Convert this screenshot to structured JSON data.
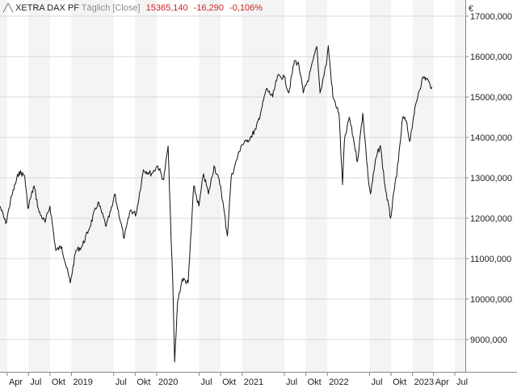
{
  "header": {
    "name": "XETRA DAX PF",
    "interval": "Täglich",
    "price_type": "[Close]",
    "last": "15365,140",
    "change": "-16,290",
    "change_pct": "-0,106%"
  },
  "colors": {
    "line": "#111111",
    "negative": "#cc2222",
    "band": "#f4f4f4",
    "grid": "#d8d8d8"
  },
  "chart_data": {
    "type": "line",
    "title": "XETRA DAX PF",
    "currency": "€",
    "ylim": [
      8200,
      17400
    ],
    "yticks": [
      9000,
      10000,
      11000,
      12000,
      13000,
      14000,
      15000,
      16000,
      17000
    ],
    "ytick_labels": [
      "9000,000",
      "10000,000",
      "11000,000",
      "12000,000",
      "13000,000",
      "14000,000",
      "15000,000",
      "16000,000",
      "17000,000"
    ],
    "xlim": [
      "2018-03-01",
      "2023-08-15"
    ],
    "xticks": [
      {
        "label": "Apr",
        "date": "2018-04-01"
      },
      {
        "label": "Jul",
        "date": "2018-07-01"
      },
      {
        "label": "Okt",
        "date": "2018-10-01"
      },
      {
        "label": "2019",
        "date": "2019-01-01"
      },
      {
        "label": "Jul",
        "date": "2019-07-01"
      },
      {
        "label": "Okt",
        "date": "2019-10-01"
      },
      {
        "label": "2020",
        "date": "2020-01-01"
      },
      {
        "label": "Jul",
        "date": "2020-07-01"
      },
      {
        "label": "Okt",
        "date": "2020-10-01"
      },
      {
        "label": "2021",
        "date": "2021-01-01"
      },
      {
        "label": "Jul",
        "date": "2021-07-01"
      },
      {
        "label": "Okt",
        "date": "2021-10-01"
      },
      {
        "label": "2022",
        "date": "2022-01-01"
      },
      {
        "label": "Jul",
        "date": "2022-07-01"
      },
      {
        "label": "Okt",
        "date": "2022-10-01"
      },
      {
        "label": "2023",
        "date": "2023-01-01"
      },
      {
        "label": "Apr",
        "date": "2023-04-01"
      },
      {
        "label": "Jul",
        "date": "2023-07-01"
      }
    ],
    "series": [
      {
        "values": [
          [
            "2018-03-01",
            12300
          ],
          [
            "2018-03-26",
            11870
          ],
          [
            "2018-04-20",
            12550
          ],
          [
            "2018-05-22",
            13150
          ],
          [
            "2018-06-15",
            13050
          ],
          [
            "2018-06-28",
            12250
          ],
          [
            "2018-07-25",
            12800
          ],
          [
            "2018-08-15",
            12150
          ],
          [
            "2018-09-10",
            11900
          ],
          [
            "2018-10-01",
            12300
          ],
          [
            "2018-10-26",
            11200
          ],
          [
            "2018-11-20",
            11300
          ],
          [
            "2018-12-27",
            10400
          ],
          [
            "2019-01-20",
            11200
          ],
          [
            "2019-02-15",
            11300
          ],
          [
            "2019-03-15",
            11700
          ],
          [
            "2019-04-25",
            12400
          ],
          [
            "2019-05-30",
            11800
          ],
          [
            "2019-06-25",
            12300
          ],
          [
            "2019-07-05",
            12600
          ],
          [
            "2019-08-15",
            11500
          ],
          [
            "2019-09-10",
            12200
          ],
          [
            "2019-10-05",
            12100
          ],
          [
            "2019-11-05",
            13200
          ],
          [
            "2019-12-10",
            13100
          ],
          [
            "2020-01-05",
            13300
          ],
          [
            "2020-01-31",
            12950
          ],
          [
            "2020-02-19",
            13790
          ],
          [
            "2020-02-25",
            12700
          ],
          [
            "2020-03-10",
            10400
          ],
          [
            "2020-03-18",
            8440
          ],
          [
            "2020-03-31",
            9950
          ],
          [
            "2020-04-20",
            10500
          ],
          [
            "2020-05-15",
            10400
          ],
          [
            "2020-06-08",
            12800
          ],
          [
            "2020-06-30",
            12300
          ],
          [
            "2020-07-20",
            13100
          ],
          [
            "2020-08-10",
            12600
          ],
          [
            "2020-09-03",
            13300
          ],
          [
            "2020-10-01",
            12800
          ],
          [
            "2020-10-30",
            11560
          ],
          [
            "2020-11-15",
            13000
          ],
          [
            "2020-12-01",
            13300
          ],
          [
            "2020-12-28",
            13800
          ],
          [
            "2021-01-20",
            13900
          ],
          [
            "2021-02-05",
            14000
          ],
          [
            "2021-03-01",
            14200
          ],
          [
            "2021-03-25",
            14700
          ],
          [
            "2021-04-15",
            15200
          ],
          [
            "2021-05-12",
            15000
          ],
          [
            "2021-06-01",
            15500
          ],
          [
            "2021-06-30",
            15500
          ],
          [
            "2021-07-20",
            15100
          ],
          [
            "2021-08-13",
            15900
          ],
          [
            "2021-09-01",
            15800
          ],
          [
            "2021-09-20",
            15100
          ],
          [
            "2021-10-15",
            15500
          ],
          [
            "2021-11-17",
            16250
          ],
          [
            "2021-12-01",
            15100
          ],
          [
            "2021-12-30",
            15900
          ],
          [
            "2022-01-05",
            16270
          ],
          [
            "2022-01-25",
            15000
          ],
          [
            "2022-02-20",
            14600
          ],
          [
            "2022-03-07",
            12830
          ],
          [
            "2022-03-15",
            13900
          ],
          [
            "2022-04-05",
            14500
          ],
          [
            "2022-04-25",
            13900
          ],
          [
            "2022-05-10",
            13400
          ],
          [
            "2022-06-02",
            14600
          ],
          [
            "2022-06-25",
            13000
          ],
          [
            "2022-07-05",
            12600
          ],
          [
            "2022-07-29",
            13500
          ],
          [
            "2022-08-16",
            13800
          ],
          [
            "2022-09-05",
            12800
          ],
          [
            "2022-09-29",
            12000
          ],
          [
            "2022-10-15",
            12700
          ],
          [
            "2022-11-01",
            13400
          ],
          [
            "2022-11-20",
            14500
          ],
          [
            "2022-12-05",
            14400
          ],
          [
            "2022-12-20",
            13900
          ],
          [
            "2023-01-05",
            14500
          ],
          [
            "2023-01-26",
            15100
          ],
          [
            "2023-02-16",
            15500
          ],
          [
            "2023-03-10",
            15400
          ],
          [
            "2023-03-17",
            15300
          ],
          [
            "2023-03-25",
            15250
          ]
        ]
      }
    ]
  }
}
